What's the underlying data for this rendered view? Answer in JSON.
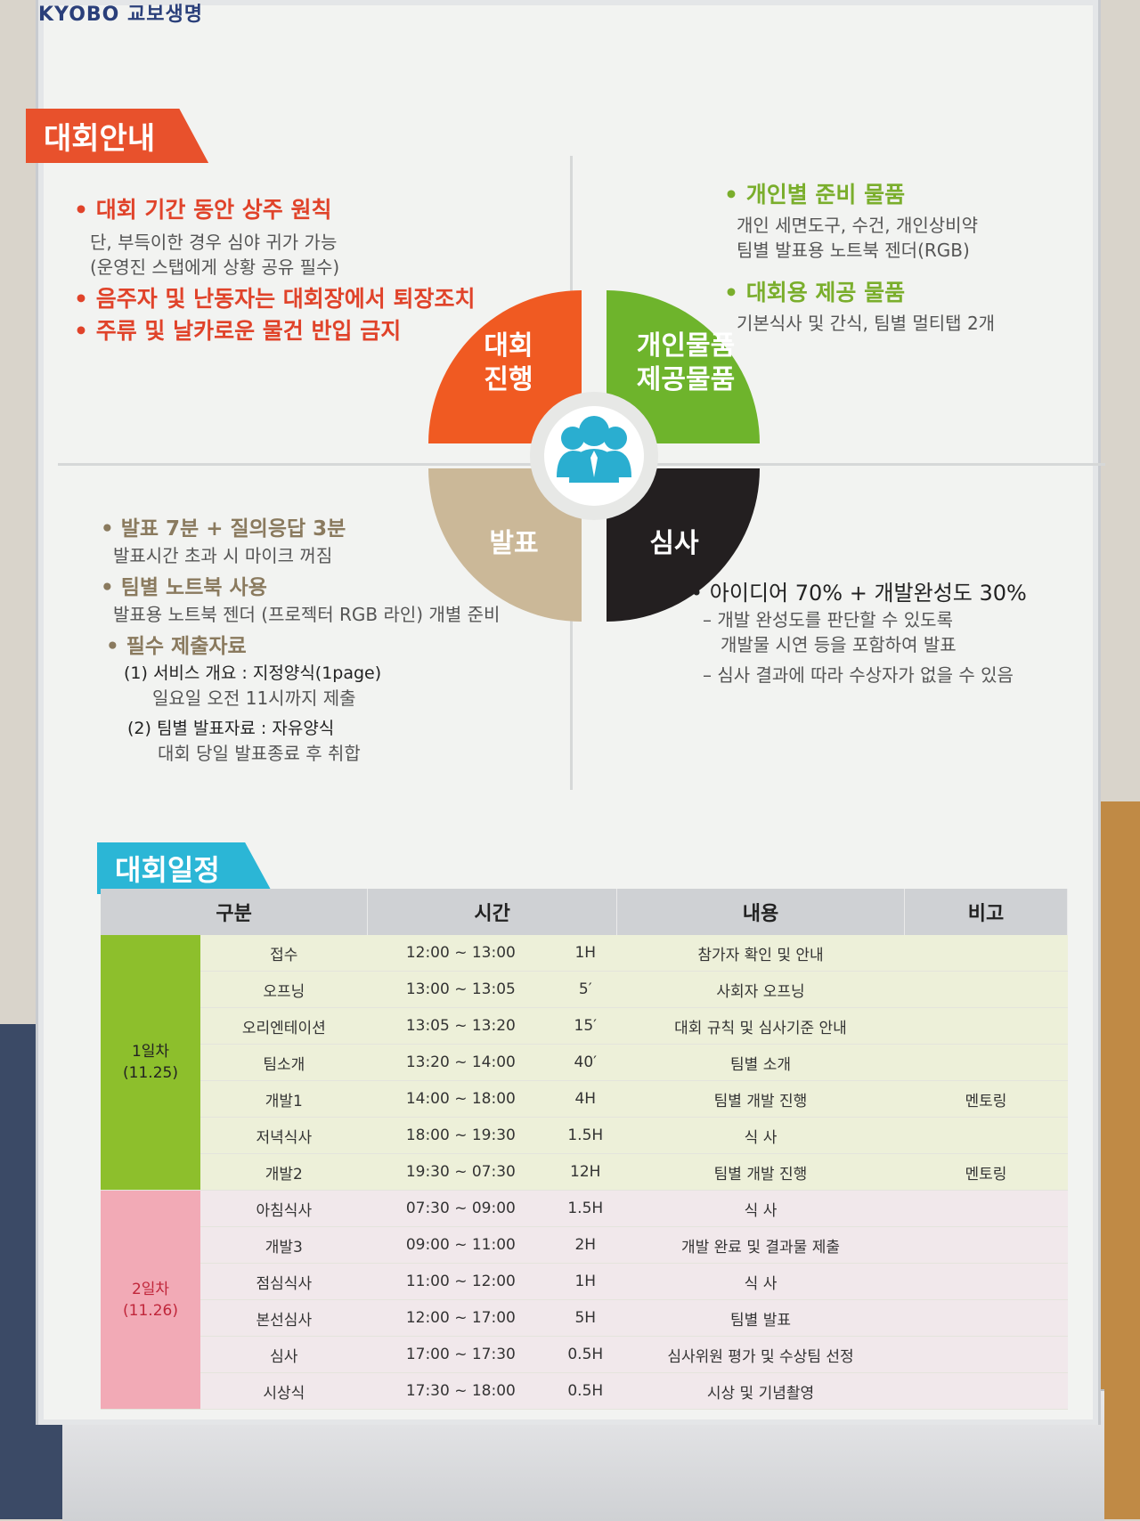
{
  "brand": "KYOBO 교보생명",
  "section1": {
    "title": "대회안내",
    "top_left": {
      "b1": "대회 기간 동안 상주 원칙",
      "b1_sub1": "단, 부득이한 경우 심야 귀가 가능",
      "b1_sub2": "(운영진 스탭에게 상황 공유 필수)",
      "b2": "음주자 및 난동자는 대회장에서 퇴장조치",
      "b3": "주류 및 날카로운 물건 반입 금지"
    },
    "top_right": {
      "b1": "개인별 준비 물품",
      "b1_sub1": "개인 세면도구, 수건, 개인상비약",
      "b1_sub2": "팀별 발표용 노트북 젠더(RGB)",
      "b2": "대회용 제공 물품",
      "b2_sub1": "기본식사 및 간식, 팀별 멀티탭 2개"
    },
    "bottom_left": {
      "b1": "발표 7분 + 질의응답 3분",
      "b1_sub1": "발표시간 초과 시 마이크 꺼짐",
      "b2": "팀별 노트북 사용",
      "b2_sub1": "발표용 노트북 젠더 (프로젝터 RGB 라인) 개별 준비",
      "b3": "필수 제출자료",
      "i1": "(1) 서비스 개요 : 지정양식(1page)",
      "i1_sub": "일요일 오전 11시까지 제출",
      "i2": "(2) 팀별 발표자료 : 자유양식",
      "i2_sub": "대회 당일 발표종료 후 취합"
    },
    "bottom_right": {
      "b1": "아이디어 70% + 개발완성도 30%",
      "d1a": "– 개발 완성도를 판단할 수 있도록",
      "d1b": "개발물 시연 등을 포함하여 발표",
      "d2": "– 심사 결과에 따라 수상자가 없을 수 있음"
    },
    "diagram": {
      "q1a": "대회",
      "q1b": "진행",
      "q2a": "개인물품",
      "q2b": "제공물품",
      "q3": "발표",
      "q4": "심사",
      "colors": {
        "q1": "#f05a22",
        "q2": "#6eb42c",
        "q3": "#cbb898",
        "q4": "#231f20",
        "center_icon": "#2aaed0"
      },
      "center_icon": "people-icon"
    }
  },
  "section2": {
    "title": "대회일정",
    "headers": [
      "구분",
      "시간",
      "내용",
      "비고"
    ],
    "day1_label": "1일차",
    "day1_date": "(11.25)",
    "day2_label": "2일차",
    "day2_date": "(11.26)",
    "rows": [
      {
        "item": "접수",
        "time": "12:00 ~ 13:00",
        "dur": "1H",
        "content": "참가자 확인 및 안내",
        "note": ""
      },
      {
        "item": "오프닝",
        "time": "13:00 ~ 13:05",
        "dur": "5′",
        "content": "사회자 오프닝",
        "note": ""
      },
      {
        "item": "오리엔테이션",
        "time": "13:05 ~ 13:20",
        "dur": "15′",
        "content": "대회 규칙 및 심사기준 안내",
        "note": ""
      },
      {
        "item": "팀소개",
        "time": "13:20 ~ 14:00",
        "dur": "40′",
        "content": "팀별 소개",
        "note": ""
      },
      {
        "item": "개발1",
        "time": "14:00 ~ 18:00",
        "dur": "4H",
        "content": "팀별 개발 진행",
        "note": "멘토링"
      },
      {
        "item": "저녁식사",
        "time": "18:00 ~ 19:30",
        "dur": "1.5H",
        "content": "식 사",
        "note": ""
      },
      {
        "item": "개발2",
        "time": "19:30 ~ 07:30",
        "dur": "12H",
        "content": "팀별 개발 진행",
        "note": "멘토링"
      },
      {
        "item": "아침식사",
        "time": "07:30 ~ 09:00",
        "dur": "1.5H",
        "content": "식 사",
        "note": ""
      },
      {
        "item": "개발3",
        "time": "09:00 ~ 11:00",
        "dur": "2H",
        "content": "개발 완료 및 결과물 제출",
        "note": ""
      },
      {
        "item": "점심식사",
        "time": "11:00 ~ 12:00",
        "dur": "1H",
        "content": "식 사",
        "note": ""
      },
      {
        "item": "본선심사",
        "time": "12:00 ~ 17:00",
        "dur": "5H",
        "content": "팀별 발표",
        "note": ""
      },
      {
        "item": "심사",
        "time": "17:00 ~ 17:30",
        "dur": "0.5H",
        "content": "심사위원 평가 및 수상팀 선정",
        "note": ""
      },
      {
        "item": "시상식",
        "time": "17:30 ~ 18:00",
        "dur": "0.5H",
        "content": "시상 및 기념촬영",
        "note": ""
      }
    ]
  }
}
